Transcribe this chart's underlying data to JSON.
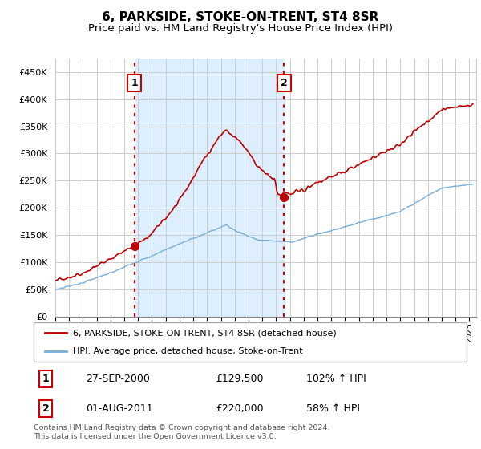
{
  "title": "6, PARKSIDE, STOKE-ON-TRENT, ST4 8SR",
  "subtitle": "Price paid vs. HM Land Registry's House Price Index (HPI)",
  "title_fontsize": 11,
  "subtitle_fontsize": 9.5,
  "ytick_values": [
    0,
    50000,
    100000,
    150000,
    200000,
    250000,
    300000,
    350000,
    400000,
    450000
  ],
  "ylim": [
    0,
    475000
  ],
  "xlim_start": 1995.0,
  "xlim_end": 2025.5,
  "sale1_date": 2000.74,
  "sale1_price": 129500,
  "sale1_label": "1",
  "sale2_date": 2011.58,
  "sale2_price": 220000,
  "sale2_label": "2",
  "property_color": "#bb0000",
  "hpi_color": "#7aaed6",
  "vline_color": "#cc0000",
  "shade_color": "#ddeeff",
  "legend_property": "6, PARKSIDE, STOKE-ON-TRENT, ST4 8SR (detached house)",
  "legend_hpi": "HPI: Average price, detached house, Stoke-on-Trent",
  "table_row1": [
    "1",
    "27-SEP-2000",
    "£129,500",
    "102% ↑ HPI"
  ],
  "table_row2": [
    "2",
    "01-AUG-2011",
    "£220,000",
    "58% ↑ HPI"
  ],
  "footer": "Contains HM Land Registry data © Crown copyright and database right 2024.\nThis data is licensed under the Open Government Licence v3.0.",
  "background_color": "#ffffff",
  "grid_color": "#cccccc"
}
